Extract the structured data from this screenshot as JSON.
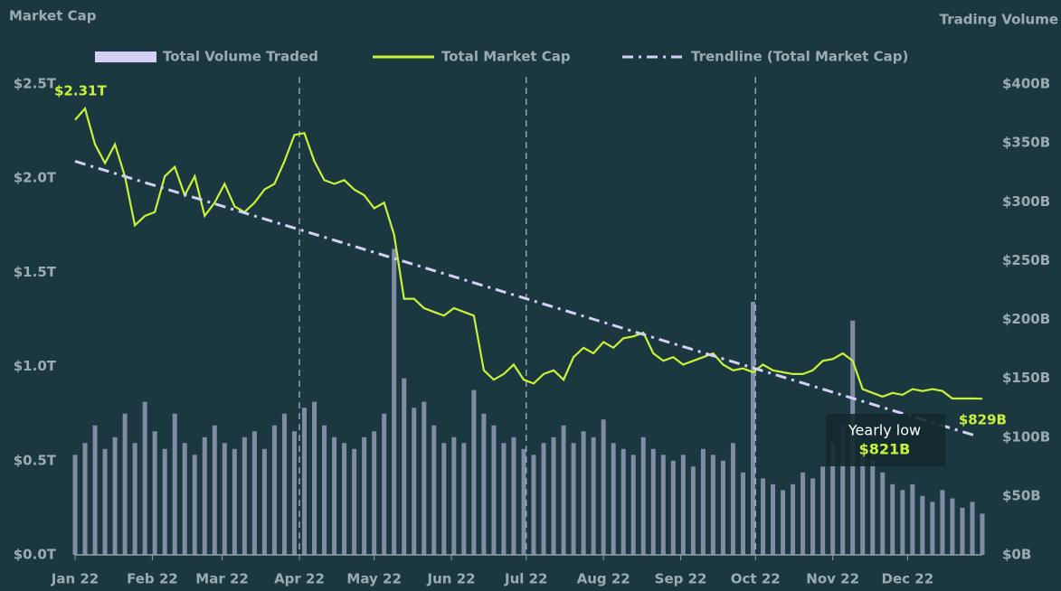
{
  "chart_data": {
    "type": "combo",
    "y_label": "Market Cap",
    "y2_label": "Trading Volume",
    "x": [
      1,
      5,
      9,
      13,
      17,
      21,
      25,
      29,
      33,
      37,
      41,
      45,
      49,
      53,
      57,
      61,
      65,
      69,
      73,
      77,
      81,
      85,
      89,
      93,
      97,
      101,
      105,
      109,
      113,
      117,
      121,
      125,
      129,
      133,
      137,
      141,
      145,
      149,
      153,
      157,
      161,
      165,
      169,
      173,
      177,
      181,
      185,
      189,
      193,
      197,
      201,
      205,
      209,
      213,
      217,
      221,
      225,
      229,
      233,
      237,
      241,
      245,
      249,
      253,
      257,
      261,
      265,
      269,
      273,
      277,
      281,
      285,
      289,
      293,
      297,
      301,
      305,
      309,
      313,
      317,
      321,
      325,
      329,
      333,
      337,
      341,
      345,
      349,
      353,
      357,
      361,
      365
    ],
    "xlim": [
      1,
      365
    ],
    "xticks": [
      {
        "value": 1,
        "label": "Jan 22"
      },
      {
        "value": 32,
        "label": "Feb 22"
      },
      {
        "value": 60,
        "label": "Mar 22"
      },
      {
        "value": 91,
        "label": "Apr 22"
      },
      {
        "value": 121,
        "label": "May 22"
      },
      {
        "value": 152,
        "label": "Jun 22"
      },
      {
        "value": 182,
        "label": "Jul 22"
      },
      {
        "value": 213,
        "label": "Aug 22"
      },
      {
        "value": 244,
        "label": "Sep 22"
      },
      {
        "value": 274,
        "label": "Oct 22"
      },
      {
        "value": 305,
        "label": "Nov 22"
      },
      {
        "value": 335,
        "label": "Dec 22"
      }
    ],
    "quarter_lines": [
      91,
      182,
      274
    ],
    "ylim": [
      0,
      2.5
    ],
    "yticks": [
      {
        "value": 0,
        "label": "$0.0T"
      },
      {
        "value": 0.5,
        "label": "$0.5T"
      },
      {
        "value": 1,
        "label": "$1.0T"
      },
      {
        "value": 1.5,
        "label": "$1.5T"
      },
      {
        "value": 2,
        "label": "$2.0T"
      },
      {
        "value": 2.5,
        "label": "$2.5T"
      }
    ],
    "y2lim": [
      0,
      400
    ],
    "y2ticks": [
      {
        "value": 0,
        "label": "$0B"
      },
      {
        "value": 50,
        "label": "$50B"
      },
      {
        "value": 100,
        "label": "$100B"
      },
      {
        "value": 150,
        "label": "$150B"
      },
      {
        "value": 200,
        "label": "$200B"
      },
      {
        "value": 250,
        "label": "$250B"
      },
      {
        "value": 300,
        "label": "$300B"
      },
      {
        "value": 350,
        "label": "$350B"
      },
      {
        "value": 400,
        "label": "$400B"
      }
    ],
    "series": [
      {
        "name": "Total Volume Traded",
        "type": "bar",
        "axis": "y2",
        "color": "#d4d0f5",
        "values": [
          85,
          95,
          110,
          90,
          100,
          120,
          95,
          130,
          105,
          90,
          120,
          95,
          85,
          100,
          110,
          95,
          90,
          100,
          105,
          90,
          110,
          120,
          105,
          125,
          130,
          110,
          100,
          95,
          90,
          100,
          105,
          120,
          260,
          150,
          125,
          130,
          110,
          95,
          100,
          95,
          140,
          120,
          110,
          95,
          100,
          90,
          85,
          95,
          100,
          110,
          95,
          105,
          100,
          115,
          95,
          90,
          85,
          100,
          90,
          85,
          80,
          85,
          75,
          90,
          85,
          80,
          95,
          70,
          215,
          65,
          60,
          55,
          60,
          70,
          65,
          75,
          95,
          110,
          199,
          90,
          80,
          70,
          60,
          55,
          60,
          50,
          45,
          55,
          48,
          40,
          45,
          35
        ]
      },
      {
        "name": "Total Market Cap",
        "type": "line",
        "color": "#c8f23a",
        "values": [
          2.31,
          2.37,
          2.18,
          2.08,
          2.18,
          2.01,
          1.75,
          1.8,
          1.82,
          2.01,
          2.06,
          1.91,
          2.01,
          1.8,
          1.87,
          1.97,
          1.85,
          1.82,
          1.87,
          1.94,
          1.97,
          2.09,
          2.23,
          2.24,
          2.09,
          1.99,
          1.97,
          1.99,
          1.94,
          1.91,
          1.84,
          1.87,
          1.7,
          1.36,
          1.36,
          1.31,
          1.29,
          1.27,
          1.31,
          1.29,
          1.27,
          0.98,
          0.93,
          0.96,
          1.01,
          0.93,
          0.91,
          0.96,
          0.98,
          0.93,
          1.05,
          1.1,
          1.07,
          1.13,
          1.1,
          1.15,
          1.16,
          1.18,
          1.07,
          1.03,
          1.05,
          1.01,
          1.03,
          1.05,
          1.07,
          1.01,
          0.98,
          0.99,
          0.97,
          1.01,
          0.98,
          0.97,
          0.96,
          0.96,
          0.98,
          1.03,
          1.04,
          1.07,
          1.03,
          0.88,
          0.86,
          0.84,
          0.86,
          0.85,
          0.88,
          0.87,
          0.88,
          0.87,
          0.83,
          0.83,
          0.83,
          0.829
        ]
      },
      {
        "name": "Trendline (Total Market Cap)",
        "type": "trend",
        "color": "#d4d0f5",
        "x": [
          1,
          363
        ],
        "values": [
          2.09,
          0.63
        ]
      }
    ],
    "annotations": {
      "start": "$2.31T",
      "end": "$829B",
      "low_title": "Yearly low",
      "low_value": "$821B"
    }
  }
}
